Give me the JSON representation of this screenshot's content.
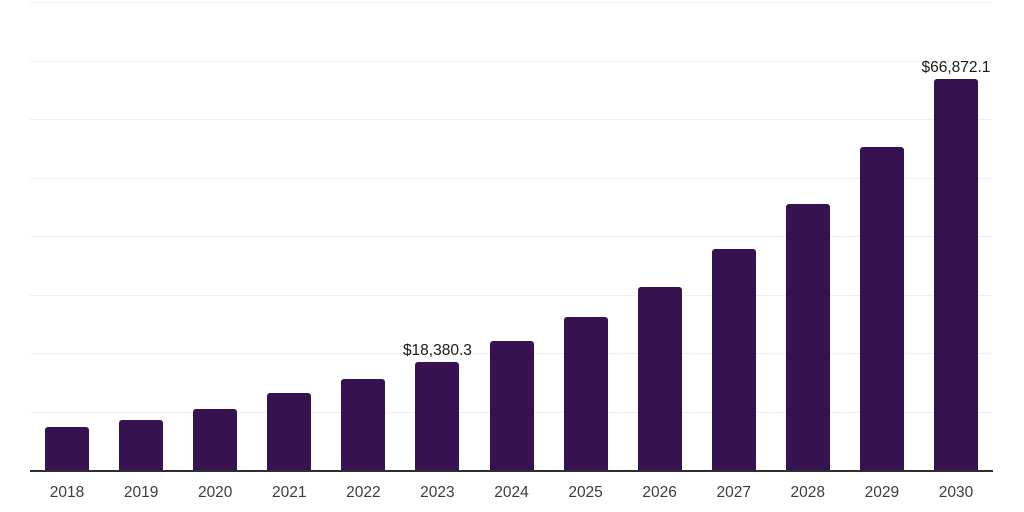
{
  "chart_data": {
    "type": "bar",
    "title": "",
    "xlabel": "",
    "ylabel": "",
    "categories": [
      "2018",
      "2019",
      "2020",
      "2021",
      "2022",
      "2023",
      "2024",
      "2025",
      "2026",
      "2027",
      "2028",
      "2029",
      "2030"
    ],
    "values": [
      7300,
      8600,
      10400,
      13100,
      15500,
      18380.3,
      22000,
      26100,
      31300,
      37800,
      45500,
      55200,
      66872.1
    ],
    "value_unit": "USD",
    "data_labels": [
      {
        "index": 5,
        "text": "$18,380.3"
      },
      {
        "index": 12,
        "text": "$66,872.1"
      }
    ],
    "ylim": [
      0,
      80000
    ],
    "gridline_interval": 10000,
    "grid": "horizontal",
    "legend": "none",
    "colors": {
      "bar": "#361250",
      "axis_line": "#2e2e2e",
      "gridline": "#efefef",
      "data_label_text": "#1a1a1a",
      "tick_label_text": "#3c3c3c",
      "background": "#ffffff"
    }
  }
}
